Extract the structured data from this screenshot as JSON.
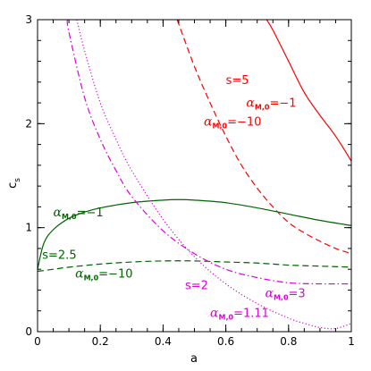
{
  "chart_data": {
    "type": "line",
    "title": "",
    "xlabel": "a",
    "ylabel": "c",
    "ylabel_sub": "s",
    "xlim": [
      0,
      1
    ],
    "ylim": [
      0,
      3
    ],
    "x_ticks": [
      0,
      0.2,
      0.4,
      0.6,
      0.8,
      1
    ],
    "x_tick_labels": [
      "0",
      "0.2",
      "0.4",
      "0.6",
      "0.8",
      "1"
    ],
    "y_ticks": [
      0,
      1,
      2,
      3
    ],
    "y_tick_labels": [
      "0",
      "1",
      "2",
      "3"
    ],
    "grid": false,
    "colors": {
      "red": "#ff0000",
      "green": "#006400",
      "magenta": "#dd00dd"
    },
    "series": [
      {
        "id": "red-solid",
        "color": "#ff0000",
        "dash": "solid",
        "x": [
          0.73,
          0.75,
          0.8,
          0.85,
          0.9,
          0.95,
          1.0
        ],
        "y": [
          3.0,
          2.9,
          2.6,
          2.3,
          2.08,
          1.88,
          1.64
        ]
      },
      {
        "id": "red-dashed",
        "color": "#ff0000",
        "dash": "dashed",
        "x": [
          0.445,
          0.5,
          0.55,
          0.6,
          0.65,
          0.7,
          0.75,
          0.8,
          0.85,
          0.9,
          0.95,
          1.0
        ],
        "y": [
          3.0,
          2.55,
          2.2,
          1.88,
          1.6,
          1.38,
          1.2,
          1.05,
          0.95,
          0.87,
          0.8,
          0.75
        ]
      },
      {
        "id": "green-solid",
        "color": "#006400",
        "dash": "solid",
        "x": [
          0.0,
          0.02,
          0.05,
          0.1,
          0.15,
          0.2,
          0.3,
          0.4,
          0.45,
          0.5,
          0.6,
          0.7,
          0.8,
          0.9,
          1.0
        ],
        "y": [
          0.6,
          0.85,
          0.98,
          1.09,
          1.15,
          1.19,
          1.24,
          1.265,
          1.27,
          1.265,
          1.24,
          1.19,
          1.13,
          1.07,
          1.02
        ]
      },
      {
        "id": "green-dashed",
        "color": "#006400",
        "dash": "dashed",
        "x": [
          0.0,
          0.05,
          0.1,
          0.2,
          0.3,
          0.4,
          0.5,
          0.6,
          0.7,
          0.8,
          0.9,
          1.0
        ],
        "y": [
          0.58,
          0.6,
          0.62,
          0.65,
          0.67,
          0.68,
          0.68,
          0.67,
          0.66,
          0.64,
          0.63,
          0.62
        ]
      },
      {
        "id": "magenta-dashdot",
        "color": "#dd00dd",
        "dash": "dashdot",
        "x": [
          0.095,
          0.1,
          0.15,
          0.2,
          0.25,
          0.3,
          0.4,
          0.5,
          0.6,
          0.7,
          0.8,
          0.9,
          1.0
        ],
        "y": [
          3.0,
          2.88,
          2.25,
          1.85,
          1.55,
          1.3,
          0.97,
          0.75,
          0.6,
          0.52,
          0.47,
          0.46,
          0.46
        ]
      },
      {
        "id": "magenta-dotted",
        "color": "#dd00dd",
        "dash": "dotted",
        "x": [
          0.125,
          0.15,
          0.2,
          0.25,
          0.3,
          0.4,
          0.5,
          0.6,
          0.7,
          0.8,
          0.85,
          0.9,
          0.95,
          1.0
        ],
        "y": [
          3.0,
          2.7,
          2.2,
          1.85,
          1.55,
          1.08,
          0.72,
          0.46,
          0.27,
          0.13,
          0.08,
          0.04,
          0.03,
          0.08
        ]
      }
    ],
    "annotations": [
      {
        "id": "s5",
        "color": "#ff0000",
        "x": 0.6,
        "y": 2.38,
        "text": "s=5"
      },
      {
        "id": "red-alpha-1",
        "color": "#ff0000",
        "x": 0.665,
        "y": 2.16,
        "sym": "α",
        "sub": "M,0",
        "text": "=−1"
      },
      {
        "id": "red-alpha-10",
        "color": "#ff0000",
        "x": 0.53,
        "y": 1.98,
        "sym": "α",
        "sub": "M,0",
        "text": "=−10"
      },
      {
        "id": "green-alpha-1",
        "color": "#006400",
        "x": 0.05,
        "y": 1.11,
        "sym": "α",
        "sub": "M,0",
        "text": "=−1"
      },
      {
        "id": "s25",
        "color": "#006400",
        "x": 0.015,
        "y": 0.7,
        "text": "s=2.5"
      },
      {
        "id": "green-alpha-10",
        "color": "#006400",
        "x": 0.12,
        "y": 0.52,
        "sym": "α",
        "sub": "M,0",
        "text": "=−10"
      },
      {
        "id": "s2",
        "color": "#dd00dd",
        "x": 0.47,
        "y": 0.41,
        "text": "s=2"
      },
      {
        "id": "magenta-alpha3",
        "color": "#dd00dd",
        "x": 0.725,
        "y": 0.33,
        "sym": "α",
        "sub": "M,0",
        "text": "=3"
      },
      {
        "id": "magenta-alpha111",
        "color": "#dd00dd",
        "x": 0.55,
        "y": 0.14,
        "sym": "α",
        "sub": "M,0",
        "text": "=1.11"
      }
    ]
  }
}
